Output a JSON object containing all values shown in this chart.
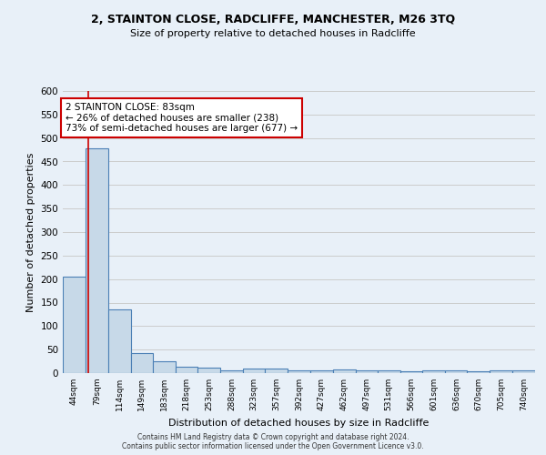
{
  "title1": "2, STAINTON CLOSE, RADCLIFFE, MANCHESTER, M26 3TQ",
  "title2": "Size of property relative to detached houses in Radcliffe",
  "xlabel": "Distribution of detached houses by size in Radcliffe",
  "ylabel": "Number of detached properties",
  "footnote1": "Contains HM Land Registry data © Crown copyright and database right 2024.",
  "footnote2": "Contains public sector information licensed under the Open Government Licence v3.0.",
  "property_size": 83,
  "annotation_line1": "2 STAINTON CLOSE: 83sqm",
  "annotation_line2": "← 26% of detached houses are smaller (238)",
  "annotation_line3": "73% of semi-detached houses are larger (677) →",
  "bar_edges": [
    44,
    79,
    114,
    149,
    183,
    218,
    253,
    288,
    323,
    357,
    392,
    427,
    462,
    497,
    531,
    566,
    601,
    636,
    670,
    705,
    740,
    775
  ],
  "bar_heights": [
    205,
    478,
    135,
    43,
    25,
    14,
    12,
    6,
    10,
    10,
    6,
    5,
    8,
    5,
    5,
    4,
    5,
    5,
    4,
    5,
    5
  ],
  "bar_color": "#c7d9e8",
  "bar_edge_color": "#4a7fb5",
  "vline_color": "#cc0000",
  "vline_x": 83,
  "annotation_box_color": "#cc0000",
  "annotation_bg": "#ffffff",
  "grid_color": "#cccccc",
  "background_color": "#e8f0f8",
  "ylim": [
    0,
    600
  ],
  "yticks": [
    0,
    50,
    100,
    150,
    200,
    250,
    300,
    350,
    400,
    450,
    500,
    550,
    600
  ]
}
